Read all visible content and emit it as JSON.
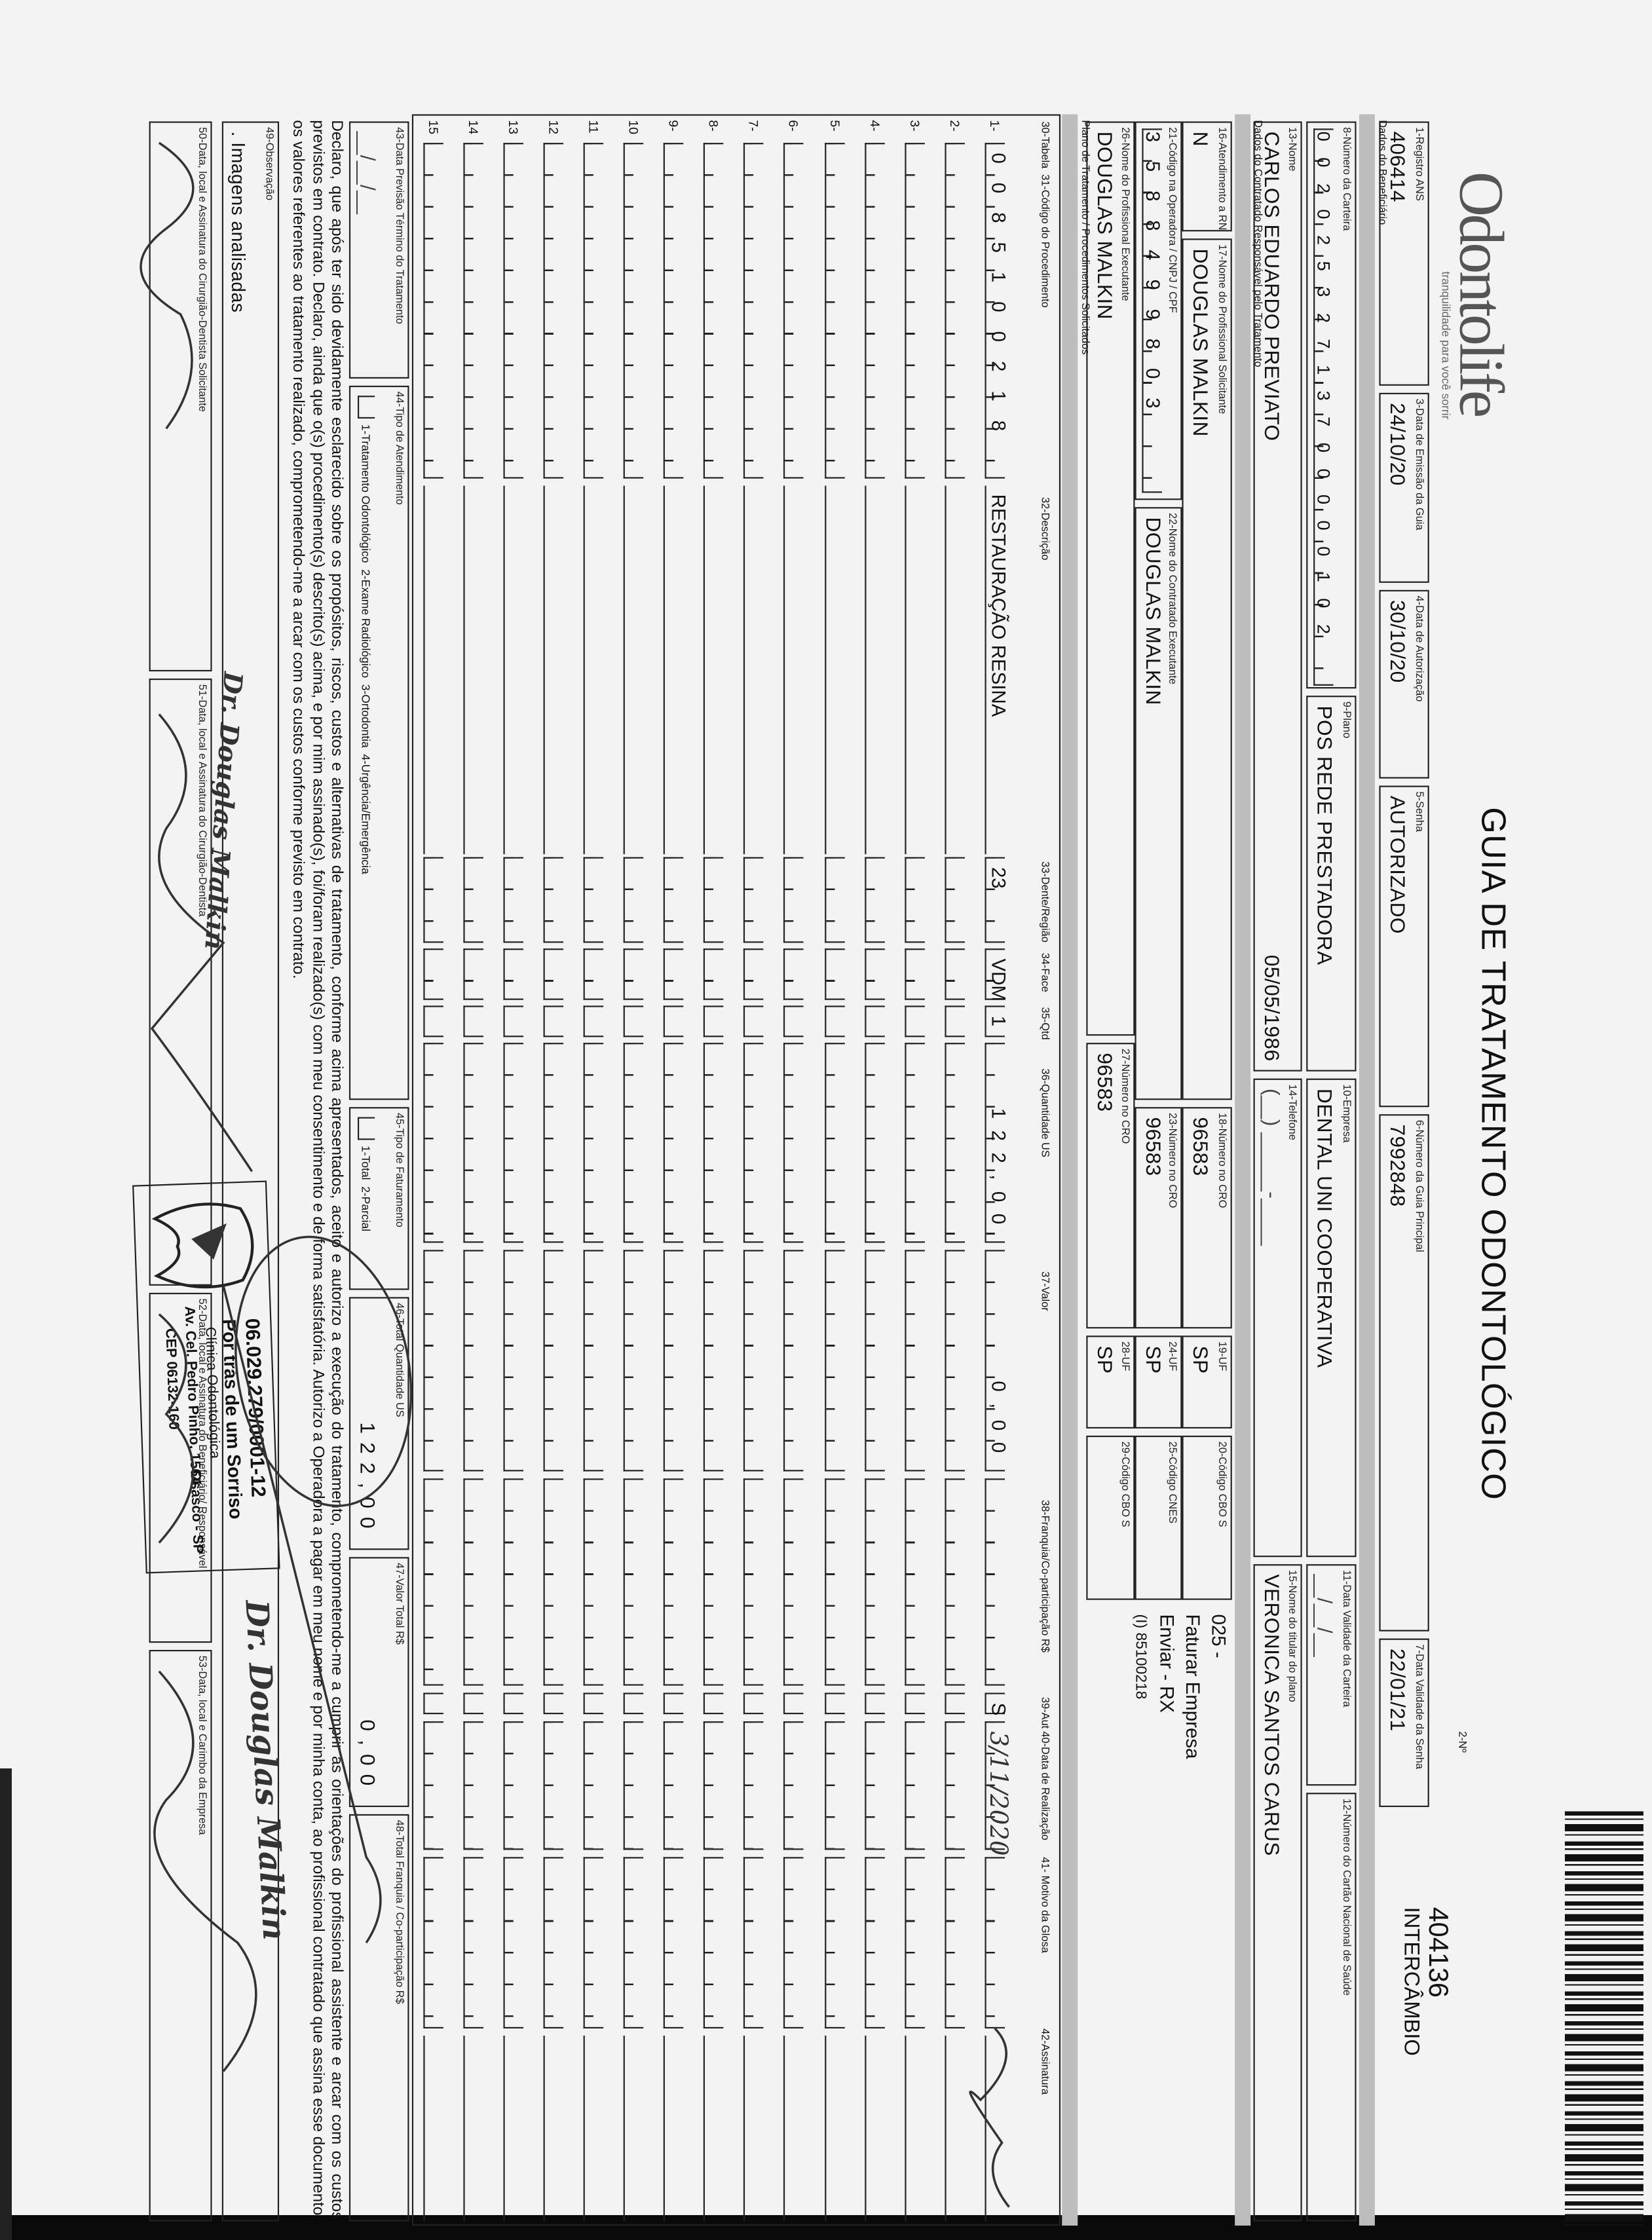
{
  "header": {
    "logo": "Odontolife",
    "logo_tagline": "tranquilidade para você sorrir",
    "title": "GUIA DE TRATAMENTO ODONTOLÓGICO",
    "guide_number_label": "2-Nº",
    "guide_number": "404136",
    "guide_type": "INTERCÂMBIO"
  },
  "fields": {
    "f1": {
      "label": "1-Registro ANS",
      "value": "406414"
    },
    "f3": {
      "label": "3-Data de Emissão da Guia",
      "value": "24/10/20"
    },
    "f4": {
      "label": "4-Data de Autorização",
      "value": "30/10/20"
    },
    "f5": {
      "label": "5-Senha",
      "value": "AUTORIZADO"
    },
    "f6": {
      "label": "6-Número da Guia Principal",
      "value": "7992848"
    },
    "f7": {
      "label": "7-Data Validade da Senha",
      "value": "22/01/21"
    },
    "f8": {
      "label": "8-Número da Carteira",
      "value": "00202532713700000102"
    },
    "f9": {
      "label": "9-Plano",
      "value": "POS REDE PRESTADORA"
    },
    "f10": {
      "label": "10-Empresa",
      "value": "DENTAL UNI COOPERATIVA"
    },
    "f11": {
      "label": "11-Data Validade da Carteira",
      "value": "__/__/__"
    },
    "f12": {
      "label": "12-Número do Cartão Nacional de Saúde",
      "value": ""
    },
    "f13": {
      "label": "13-Nome",
      "value": "CARLOS EDUARDO PREVIATO",
      "birth_date": "05/05/1986"
    },
    "f14": {
      "label": "14-Telefone",
      "value": "(__) _____-____"
    },
    "f15": {
      "label": "15-Nome do titular do plano",
      "value": "VERONICA SANTOS CARUS"
    },
    "f16": {
      "label": "16-Atendimento a RN",
      "value": "N"
    },
    "f17": {
      "label": "17-Nome do Profissional Solicitante",
      "value": "DOUGLAS MALKIN"
    },
    "f18": {
      "label": "18-Número no CRO",
      "value": "96583"
    },
    "f19": {
      "label": "19-UF",
      "value": "SP"
    },
    "f20": {
      "label": "20-Código CBO S",
      "value": ""
    },
    "f21": {
      "label": "21-Código na Operadora / CNPJ / CPF",
      "value": "3588499803"
    },
    "f22": {
      "label": "22-Nome do Contratado Executante",
      "value": "DOUGLAS MALKIN"
    },
    "f23": {
      "label": "23-Número no CRO",
      "value": "96583"
    },
    "f24": {
      "label": "24-UF",
      "value": "SP"
    },
    "f25": {
      "label": "25-Código CNES",
      "value": ""
    },
    "f26": {
      "label": "26-Nome do Profissional Executante",
      "value": "DOUGLAS MALKIN"
    },
    "f27": {
      "label": "27-Número no CRO",
      "value": "96583"
    },
    "f28": {
      "label": "28-UF",
      "value": "SP"
    },
    "f29": {
      "label": "29-Código CBO S",
      "value": ""
    }
  },
  "sections": {
    "beneficiary": "Dados do Beneficiário",
    "contractor": "Dados do Contratado Responsável pelo Tratamento",
    "plan": "Plano de Tratamento / Procedimentos Solicitados"
  },
  "notes": [
    "025 -",
    "Faturar Empresa",
    "Enviar - RX",
    "(I) 85100218"
  ],
  "table": {
    "columns": [
      "30-Tabela",
      "31-Código do Procedimento",
      "32-Descrição",
      "33-Dente/Região",
      "34-Face",
      "35-Qtd",
      "36-Quantidade US",
      "37-Valor",
      "38-Franquia/Co-participação R$",
      "39-Aut",
      "40-Data de Realização",
      "41- Motivo da Glosa",
      "42-Assinatura"
    ],
    "rows": [
      {
        "num": "1-",
        "code": "0085100218",
        "desc": "RESTAURAÇÃO RESINA",
        "tooth": "23",
        "face": "VDM",
        "qty": "1",
        "us": "122,00",
        "value": "0,00",
        "copay": "",
        "aut": "S",
        "date": "3/11/2020",
        "reason": "",
        "sign": ""
      },
      {
        "num": "2-"
      },
      {
        "num": "3-"
      },
      {
        "num": "4-"
      },
      {
        "num": "5-"
      },
      {
        "num": "6-"
      },
      {
        "num": "7-"
      },
      {
        "num": "8-"
      },
      {
        "num": "9-"
      },
      {
        "num": "10"
      },
      {
        "num": "11"
      },
      {
        "num": "12"
      },
      {
        "num": "13"
      },
      {
        "num": "14"
      },
      {
        "num": "15"
      }
    ]
  },
  "footer": {
    "f43": {
      "label": "43-Data Previsão Término do Tratamento",
      "value": "__/__/__"
    },
    "f44": {
      "label": "44-Tipo de Atendimento",
      "options": "1-Tratamento Odontológico  2-Exame Radiológico  3-Ortodontia  4-Urgência/Emergência"
    },
    "f45": {
      "label": "45-Tipo de Faturamento",
      "options": "1-Total  2-Parcial"
    },
    "f46": {
      "label": "46-Total Quantidade US",
      "value": "122,00"
    },
    "f47": {
      "label": "47-Valor Total R$",
      "value": "0,00"
    },
    "f48": {
      "label": "48-Total Franquia / Co-participação R$",
      "value": ""
    },
    "declaration": "Declaro, que após ter sido devidamente esclarecido sobre os propósitos, riscos, custos e alternativas de tratamento, conforme acima apresentados, aceito e autorizo a execução do tratamento, comprometendo-me a cumprir as orientações do profissional assistente e arcar com os custos previstos em contrato. Declaro, ainda que o(s) procedimento(s) descrito(s) acima, e por mim assinado(s), foi/foram realizado(s) com meu consentimento e de forma satisfatória. Autorizo a Operadora a pagar em meu nome e por minha conta, ao profissional contratado que assina esse documento, os valores referentes ao tratamento realizado, comprometendo-me a arcar com os custos conforme previsto em contrato.",
    "f49": {
      "label": "49-Observação",
      "value": ". Imagens analisadas"
    },
    "f50": {
      "label": "50-Data, local e Assinatura do Cirurgião-Dentista Solicitante"
    },
    "f51": {
      "label": "51-Data, local e Assinatura do Cirurgião-Dentista"
    },
    "f52": {
      "label": "52-Data, local e Assinatura do Beneficiário/ Responsável"
    },
    "f53": {
      "label": "53-Data, local e Carimbo da Empresa"
    },
    "dentist_stamp": "Dr. Douglas Malkin",
    "company_stamp": [
      "06.029.279/0001-12",
      "Por trás de um Sorriso",
      "Clínica Odontológica",
      "Av. Cel. Pedro Pinho, 1564",
      "Osasco - SP",
      "CEP 06132-160"
    ]
  }
}
